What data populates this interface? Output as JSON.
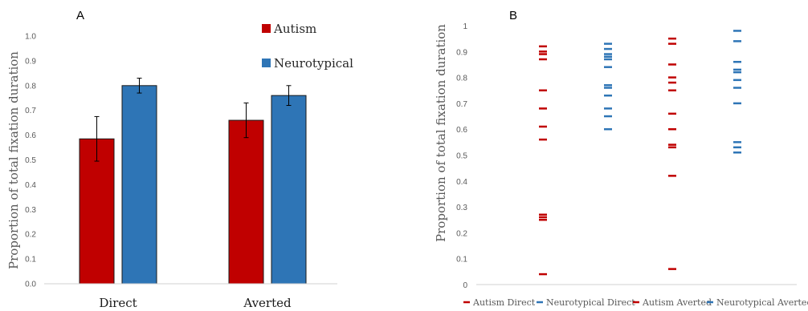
{
  "chart_data": [
    {
      "panel_label": "A",
      "type": "bar",
      "categories": [
        "Direct",
        "Averted"
      ],
      "series": [
        {
          "name": "Autism",
          "color": "#c00000",
          "values": [
            0.585,
            0.66
          ],
          "errors": [
            0.09,
            0.07
          ]
        },
        {
          "name": "Neurotypical",
          "color": "#2e75b6",
          "values": [
            0.8,
            0.76
          ],
          "errors": [
            0.03,
            0.04
          ]
        }
      ],
      "ylabel": "Proportion of total fixation duration",
      "ylim": [
        0,
        1.0
      ],
      "yticks": [
        "0.0",
        "0.1",
        "0.2",
        "0.3",
        "0.4",
        "0.5",
        "0.6",
        "0.7",
        "0.8",
        "0.9",
        "1.0"
      ],
      "legend_position": "top-right"
    },
    {
      "panel_label": "B",
      "type": "scatter",
      "marker": "dash",
      "ylabel": "Proportion of total fixation duration",
      "ylim": [
        0,
        1
      ],
      "yticks": [
        "0",
        "0.1",
        "0.2",
        "0.3",
        "0.4",
        "0.5",
        "0.6",
        "0.7",
        "0.8",
        "0.9",
        "1"
      ],
      "legend_position": "bottom",
      "series": [
        {
          "name": "Autism Direct",
          "color": "#c00000",
          "x": 1,
          "values": [
            0.92,
            0.9,
            0.89,
            0.87,
            0.75,
            0.68,
            0.61,
            0.56,
            0.27,
            0.26,
            0.25,
            0.04
          ]
        },
        {
          "name": "Neurotypical Direct",
          "color": "#2e75b6",
          "x": 2,
          "values": [
            0.93,
            0.91,
            0.89,
            0.88,
            0.87,
            0.84,
            0.77,
            0.76,
            0.73,
            0.68,
            0.65,
            0.6
          ]
        },
        {
          "name": "Autism Averted",
          "color": "#c00000",
          "x": 3,
          "values": [
            0.95,
            0.93,
            0.85,
            0.8,
            0.78,
            0.75,
            0.66,
            0.6,
            0.54,
            0.53,
            0.42,
            0.06
          ]
        },
        {
          "name": "Neurotypical Averted",
          "color": "#2e75b6",
          "x": 4,
          "values": [
            0.98,
            0.94,
            0.86,
            0.83,
            0.82,
            0.79,
            0.76,
            0.7,
            0.55,
            0.53,
            0.51
          ]
        }
      ]
    }
  ]
}
